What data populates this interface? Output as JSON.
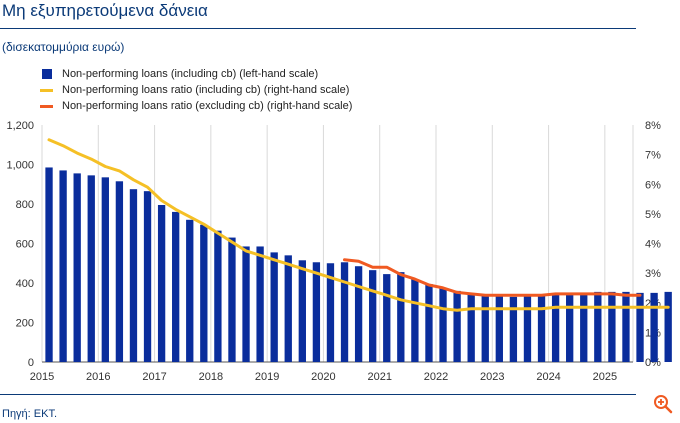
{
  "header": {
    "title": "Μη εξυπηρετούμενα δάνεια",
    "subtitle": "(δισεκατομμύρια ευρώ)"
  },
  "footer": {
    "source": "Πηγή: ΕΚΤ."
  },
  "toolbar": {
    "zoom_icon": "zoom-in-icon"
  },
  "colors": {
    "bars": "#0a2d9c",
    "ratio_incl": "#f5c026",
    "ratio_excl": "#f05a22",
    "grid": "#d9d9d9"
  },
  "chart_data": {
    "type": "bar",
    "legend": [
      "Non-performing loans (including cb) (left-hand scale)",
      "Non-performing loans ratio (including cb) (right-hand scale)",
      "Non-performing loans ratio (excluding cb) (right-hand scale)"
    ],
    "x_tick_labels": [
      "2015",
      "2016",
      "2017",
      "2018",
      "2019",
      "2020",
      "2021",
      "2022",
      "2023",
      "2024",
      "2025"
    ],
    "y_left": {
      "range": [
        0,
        1200
      ],
      "ticks": [
        "0",
        "200",
        "400",
        "600",
        "800",
        "1,000",
        "1,200"
      ]
    },
    "y_right": {
      "range": [
        0,
        8
      ],
      "ticks": [
        "0%",
        "1%",
        "2%",
        "3%",
        "4%",
        "5%",
        "6%",
        "7%",
        "8%"
      ]
    },
    "grid": "vertical",
    "series": [
      {
        "name": "Non-performing loans (including cb) (left-hand scale)",
        "type": "bar",
        "axis": "left",
        "start": "2015-Q1",
        "frequency": "quarterly",
        "values": [
          985,
          970,
          955,
          945,
          935,
          915,
          875,
          865,
          795,
          760,
          720,
          695,
          665,
          630,
          585,
          585,
          555,
          540,
          515,
          505,
          500,
          505,
          485,
          465,
          445,
          455,
          420,
          395,
          375,
          360,
          345,
          340,
          335,
          330,
          335,
          335,
          340,
          345,
          350,
          355,
          355,
          355,
          350,
          350,
          355
        ]
      },
      {
        "name": "Non-performing loans ratio (including cb) (right-hand scale)",
        "type": "line",
        "axis": "right",
        "start": "2015-Q1",
        "frequency": "quarterly",
        "values": [
          7.5,
          7.3,
          7.05,
          6.85,
          6.6,
          6.45,
          6.15,
          5.9,
          5.45,
          5.15,
          4.9,
          4.65,
          4.35,
          4.05,
          3.75,
          3.6,
          3.45,
          3.3,
          3.15,
          3.0,
          2.85,
          2.7,
          2.55,
          2.4,
          2.25,
          2.1,
          2.0,
          1.9,
          1.8,
          1.75,
          1.8,
          1.8,
          1.8,
          1.8,
          1.8,
          1.8,
          1.85,
          1.85,
          1.85,
          1.85,
          1.85,
          1.85,
          1.85,
          1.85,
          1.85
        ]
      },
      {
        "name": "Non-performing loans ratio (excluding cb) (right-hand scale)",
        "type": "line",
        "axis": "right",
        "start": "2020-Q2",
        "frequency": "quarterly",
        "values": [
          3.45,
          3.4,
          3.2,
          3.2,
          2.95,
          2.8,
          2.6,
          2.5,
          2.35,
          2.3,
          2.25,
          2.25,
          2.25,
          2.25,
          2.25,
          2.3,
          2.3,
          2.3,
          2.3,
          2.3,
          2.25,
          2.25
        ]
      }
    ]
  }
}
